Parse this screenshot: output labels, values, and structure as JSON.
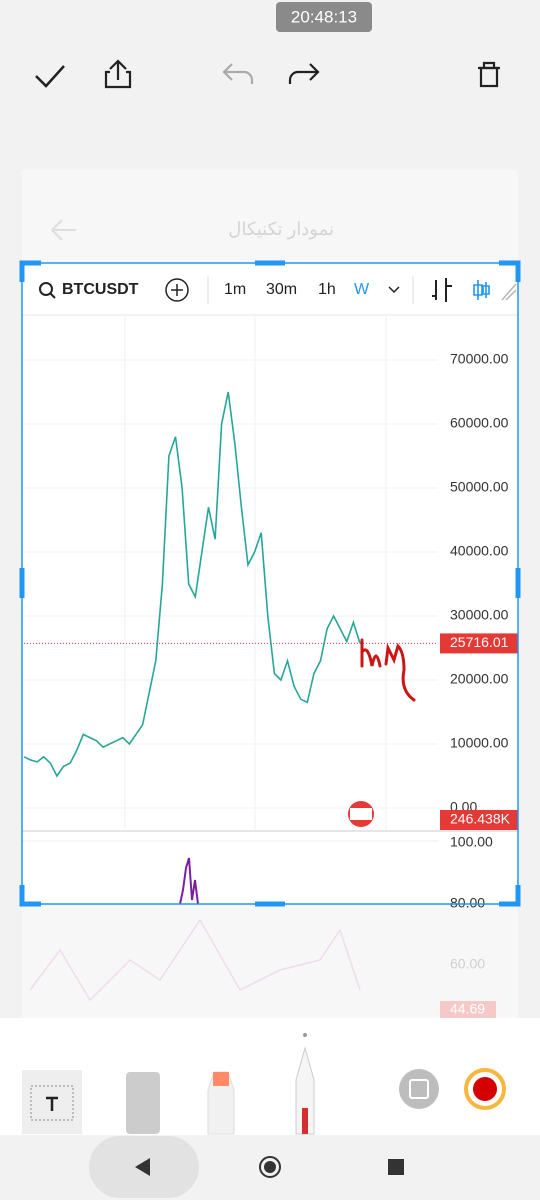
{
  "status": {
    "time": "20:48:13"
  },
  "background_app": {
    "title": "نمودار تکنیکال"
  },
  "chart_toolbar": {
    "symbol": "BTCUSDT",
    "intervals": [
      "1m",
      "30m",
      "1h",
      "W"
    ],
    "active_interval": "W"
  },
  "chart_data": {
    "type": "line",
    "color": "#26a69a",
    "values": [
      8000,
      7500,
      7200,
      8000,
      7000,
      5000,
      6500,
      7000,
      9000,
      11500,
      11000,
      10500,
      9500,
      10000,
      10500,
      11000,
      10000,
      11500,
      13000,
      18000,
      23000,
      35000,
      55000,
      58000,
      50000,
      35000,
      33000,
      40000,
      47000,
      42000,
      60000,
      65000,
      57000,
      47000,
      38000,
      40000,
      43000,
      30000,
      21000,
      20000,
      23000,
      19000,
      17000,
      16500,
      21000,
      23000,
      28000,
      30000,
      28000,
      26000,
      29000,
      25716.01
    ],
    "ylim": [
      -3437,
      76875
    ],
    "yticks": [
      {
        "value": 70000,
        "label": "70000.00"
      },
      {
        "value": 60000,
        "label": "60000.00"
      },
      {
        "value": 50000,
        "label": "50000.00"
      },
      {
        "value": 40000,
        "label": "40000.00"
      },
      {
        "value": 30000,
        "label": "30000.00"
      },
      {
        "value": 20000,
        "label": "20000.00"
      },
      {
        "value": 10000,
        "label": "10000.00"
      },
      {
        "value": 0,
        "label": "0.00"
      }
    ],
    "grid": true,
    "last_price": {
      "value": 25716.01,
      "label": "25716.01"
    },
    "volume_label": "246.438K"
  },
  "rsi_pane": {
    "labels": [
      "100.00",
      "80.00",
      "60.00"
    ],
    "current": "44.69"
  }
}
